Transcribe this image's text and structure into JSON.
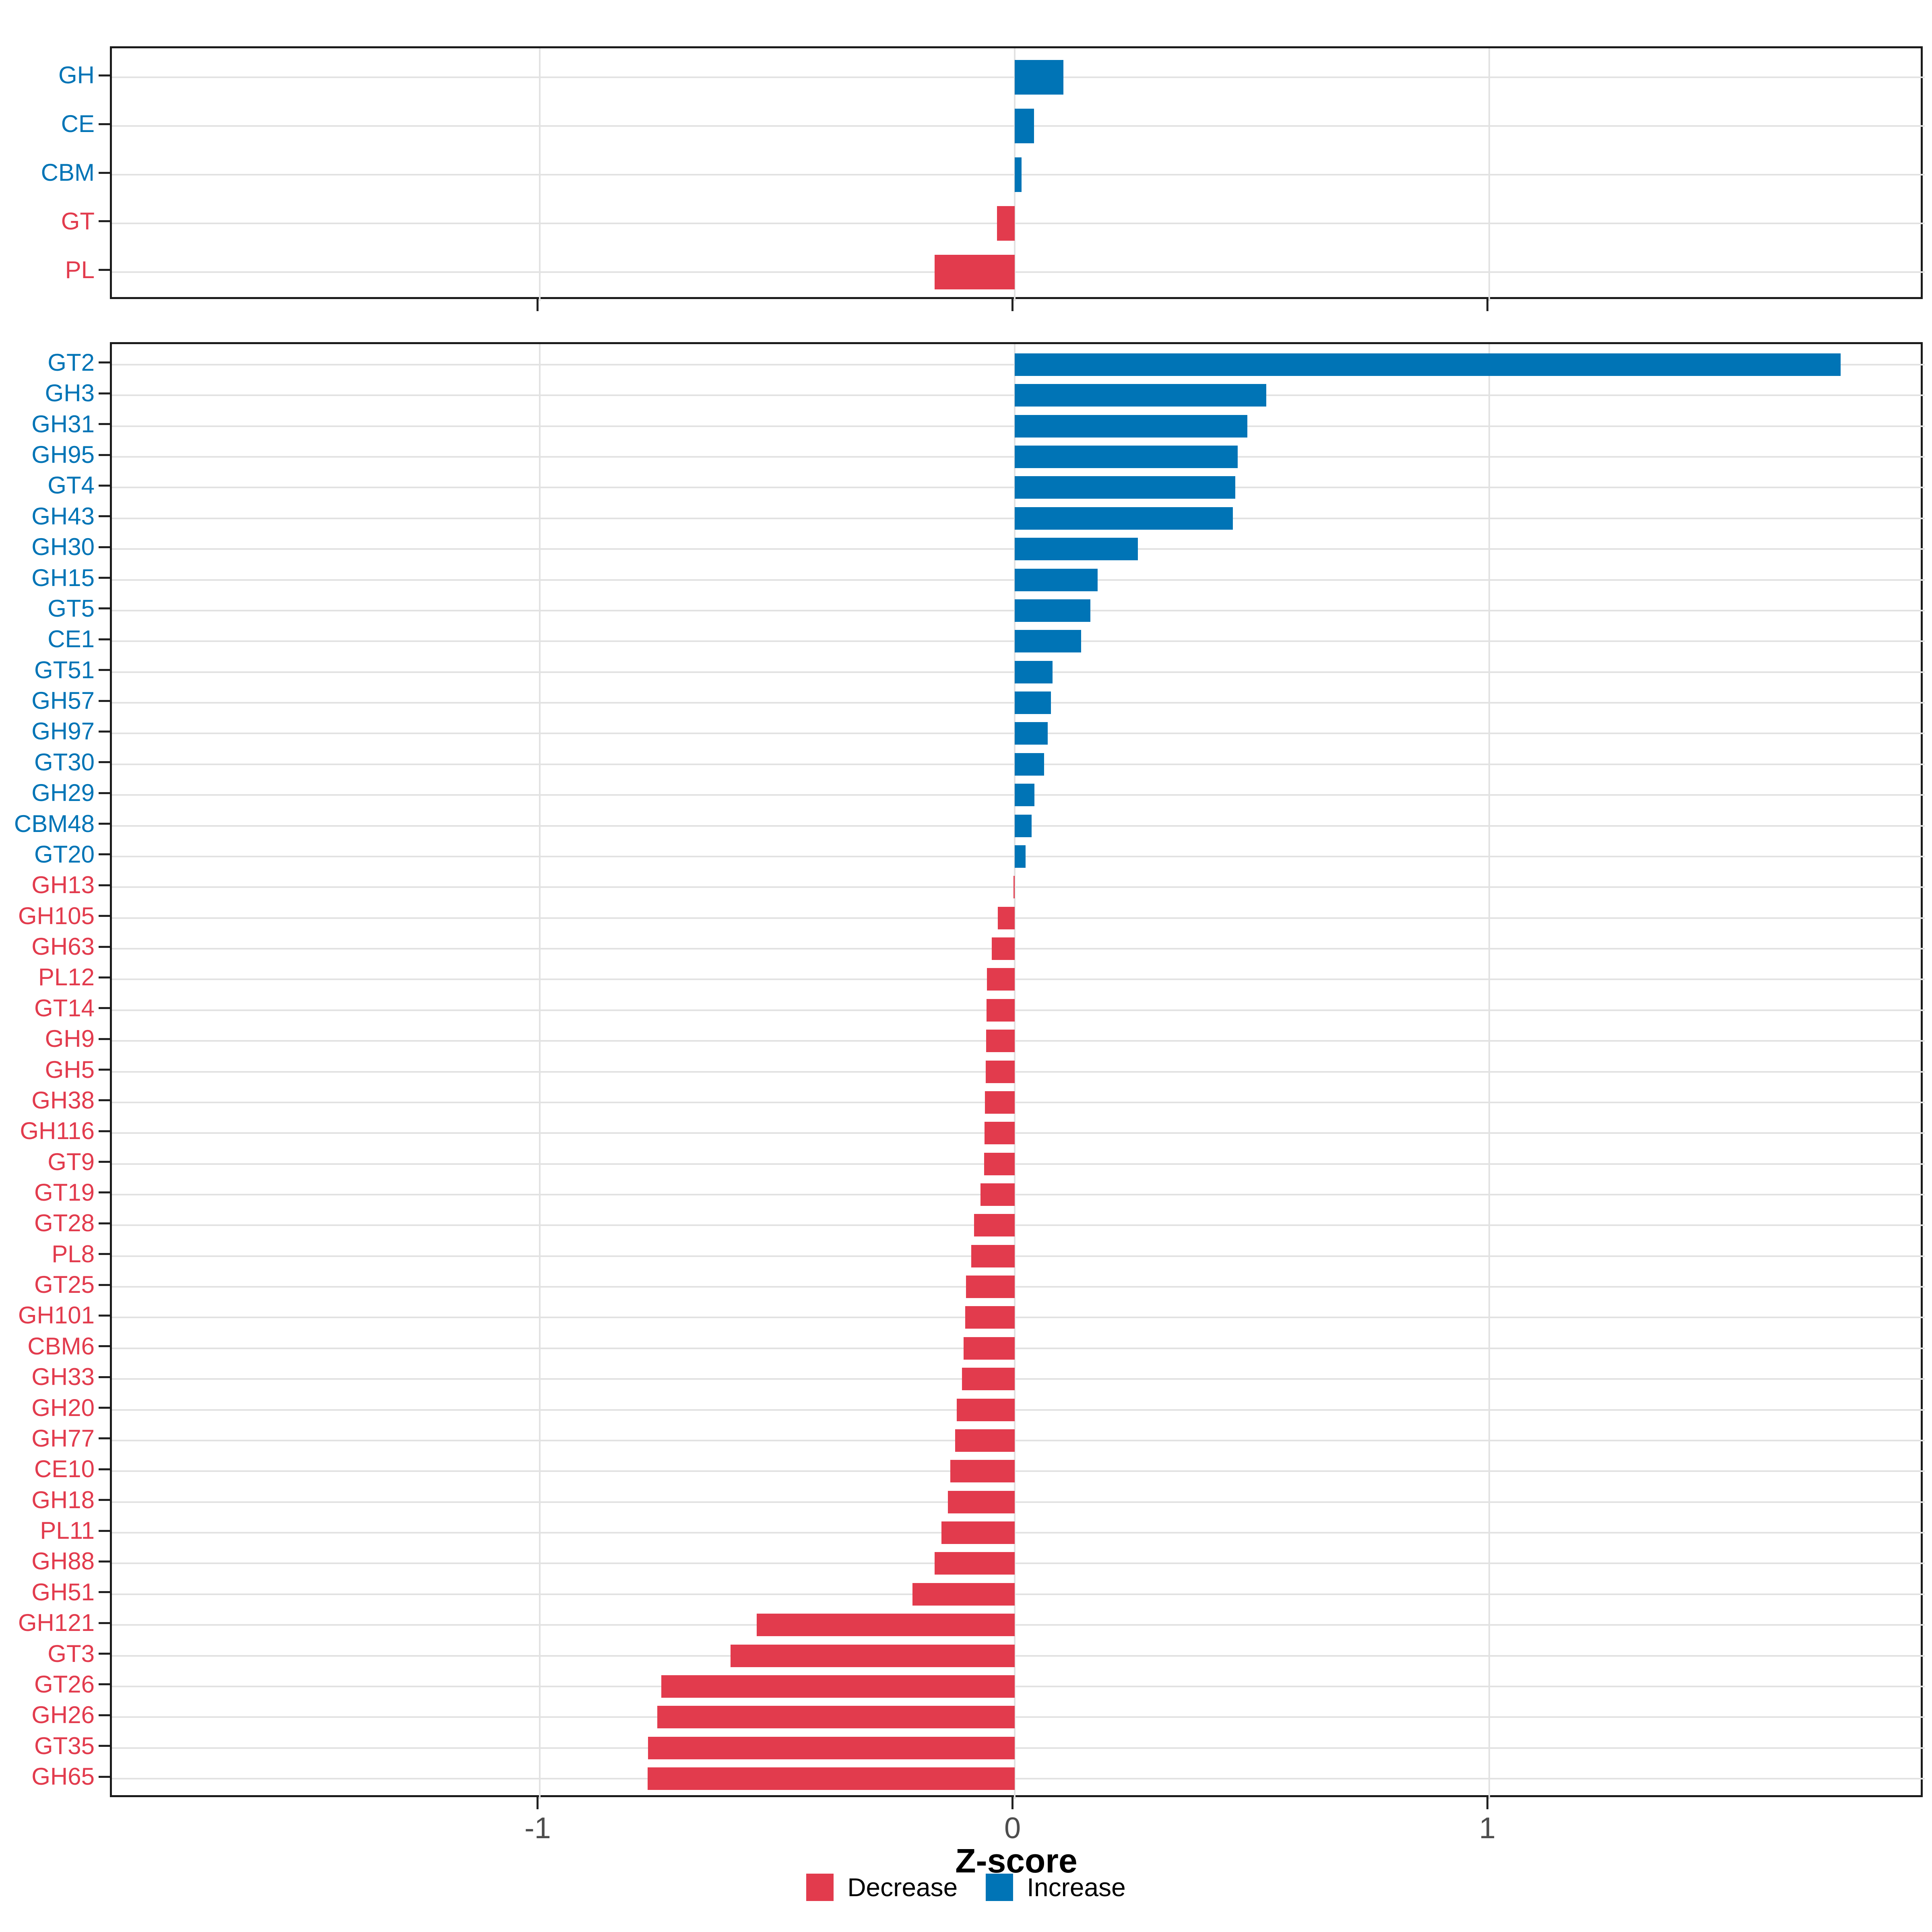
{
  "page": {
    "background": "#ffffff"
  },
  "axis": {
    "xlabel": "Z-score",
    "ticks": [
      "-1",
      "0",
      "1"
    ],
    "tick_values": [
      -1,
      0,
      1
    ],
    "xlim": [
      -1.901,
      1.917
    ]
  },
  "legend": {
    "items": [
      {
        "label": "Decrease",
        "color": "#e23b4d"
      },
      {
        "label": "Increase",
        "color": "#0074b6"
      }
    ]
  },
  "colors": {
    "increase": "#0074b6",
    "decrease": "#e23b4d",
    "grid": "#e2e2e2",
    "panel_border": "#1a1a1a",
    "tick": "#222222",
    "tick_label": "#4d4d4d",
    "axis_title": "#000000"
  },
  "chart_data": [
    {
      "type": "bar",
      "orientation": "horizontal",
      "panel": "top",
      "categories": [
        "GH",
        "CE",
        "CBM",
        "GT",
        "PL"
      ],
      "values": [
        0.103,
        0.041,
        0.015,
        -0.037,
        -0.168
      ],
      "groups": [
        "Increase",
        "Increase",
        "Increase",
        "Decrease",
        "Decrease"
      ],
      "xlabel": "Z-score",
      "grid": "on",
      "legend_position": "bottom"
    },
    {
      "type": "bar",
      "orientation": "horizontal",
      "panel": "bottom",
      "categories": [
        "GT2",
        "GH3",
        "GH31",
        "GH95",
        "GT4",
        "GH43",
        "GH30",
        "GH15",
        "GT5",
        "CE1",
        "GT51",
        "GH57",
        "GH97",
        "GT30",
        "GH29",
        "CBM48",
        "GT20",
        "GH13",
        "GH105",
        "GH63",
        "PL12",
        "GT14",
        "GH9",
        "GH5",
        "GH38",
        "GH116",
        "GT9",
        "GT19",
        "GT28",
        "PL8",
        "GT25",
        "GH101",
        "CBM6",
        "GH33",
        "GH20",
        "GH77",
        "CE10",
        "GH18",
        "PL11",
        "GH88",
        "GH51",
        "GH121",
        "GT3",
        "GT26",
        "GH26",
        "GT35",
        "GH65"
      ],
      "values": [
        1.74,
        0.53,
        0.49,
        0.47,
        0.465,
        0.46,
        0.26,
        0.175,
        0.16,
        0.14,
        0.08,
        0.077,
        0.07,
        0.062,
        0.042,
        0.036,
        0.023,
        -0.002,
        -0.035,
        -0.048,
        -0.058,
        -0.059,
        -0.06,
        -0.061,
        -0.062,
        -0.063,
        -0.064,
        -0.072,
        -0.085,
        -0.091,
        -0.102,
        -0.104,
        -0.107,
        -0.111,
        -0.122,
        -0.125,
        -0.135,
        -0.14,
        -0.154,
        -0.168,
        -0.215,
        -0.543,
        -0.598,
        -0.744,
        -0.752,
        -0.772,
        -0.773
      ],
      "groups": [
        "Increase",
        "Increase",
        "Increase",
        "Increase",
        "Increase",
        "Increase",
        "Increase",
        "Increase",
        "Increase",
        "Increase",
        "Increase",
        "Increase",
        "Increase",
        "Increase",
        "Increase",
        "Increase",
        "Increase",
        "Decrease",
        "Decrease",
        "Decrease",
        "Decrease",
        "Decrease",
        "Decrease",
        "Decrease",
        "Decrease",
        "Decrease",
        "Decrease",
        "Decrease",
        "Decrease",
        "Decrease",
        "Decrease",
        "Decrease",
        "Decrease",
        "Decrease",
        "Decrease",
        "Decrease",
        "Decrease",
        "Decrease",
        "Decrease",
        "Decrease",
        "Decrease",
        "Decrease",
        "Decrease",
        "Decrease",
        "Decrease",
        "Decrease",
        "Decrease"
      ],
      "xlabel": "Z-score",
      "grid": "on",
      "legend_position": "bottom"
    }
  ]
}
